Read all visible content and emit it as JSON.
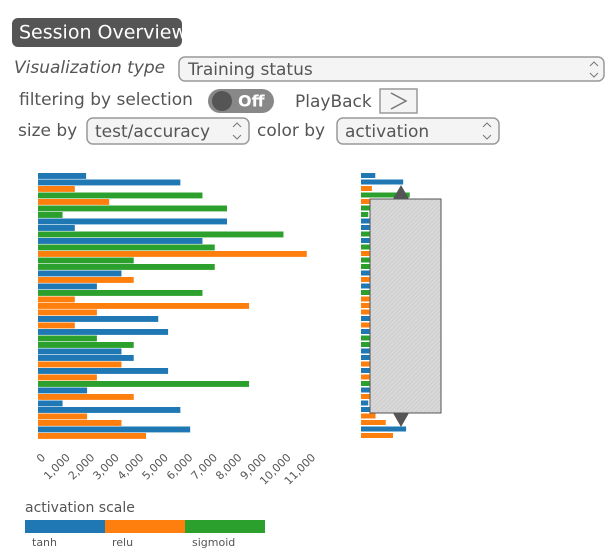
{
  "header": {
    "title": "Session Overview"
  },
  "controls": {
    "visualization_type_label": "Visualization type",
    "visualization_type_value": "Training status",
    "filtering_label": "filtering by selection",
    "filtering_state": "Off",
    "playback_label": "PlayBack",
    "size_by_label": "size by",
    "size_by_value": "test/accuracy",
    "color_by_label": "color by",
    "color_by_value": "activation"
  },
  "chart_data": {
    "type": "hbar",
    "legend_title": "activation scale",
    "xlim": [
      0,
      11000
    ],
    "xticks": [
      0,
      {
        "value": 1000,
        "label": "1,000"
      },
      {
        "value": 2000,
        "label": "2,000"
      },
      {
        "value": 3000,
        "label": "3,000"
      },
      {
        "value": 4000,
        "label": "4,000"
      },
      {
        "value": 5000,
        "label": "5,000"
      },
      {
        "value": 6000,
        "label": "6,000"
      },
      {
        "value": 7000,
        "label": "7,000"
      },
      {
        "value": 8000,
        "label": "8,000"
      },
      {
        "value": 9000,
        "label": "9,000"
      },
      {
        "value": 10000,
        "label": "10,000"
      },
      {
        "value": 11000,
        "label": "11,000"
      }
    ],
    "series": [
      {
        "name": "tanh",
        "color": "#1f77b4",
        "values": [
          1960,
          5800,
          null,
          null,
          null,
          null,
          null,
          7700,
          1500,
          null,
          6700,
          null,
          null,
          null,
          null,
          3400,
          null,
          2400,
          null,
          null,
          null,
          null,
          4900,
          null,
          5300,
          null,
          null,
          3400,
          3900,
          null,
          5300,
          null,
          null,
          2000,
          null,
          1000,
          5800,
          null,
          null,
          6200,
          null
        ]
      },
      {
        "name": "relu",
        "color": "#ff7f0e",
        "values": [
          null,
          null,
          1500,
          null,
          2900,
          null,
          null,
          null,
          null,
          null,
          null,
          null,
          10950,
          null,
          null,
          null,
          3900,
          null,
          null,
          1500,
          8600,
          2400,
          null,
          1500,
          null,
          null,
          null,
          null,
          null,
          3400,
          null,
          2400,
          null,
          null,
          3900,
          null,
          null,
          2000,
          3400,
          null,
          4400
        ]
      },
      {
        "name": "sigmoid",
        "color": "#2ca02c",
        "values": [
          null,
          null,
          null,
          6700,
          null,
          7700,
          1000,
          null,
          null,
          10000,
          null,
          7200,
          null,
          3900,
          7200,
          null,
          null,
          null,
          6700,
          null,
          null,
          null,
          null,
          null,
          null,
          2400,
          3900,
          null,
          null,
          null,
          null,
          null,
          8600,
          null,
          null,
          null,
          null,
          null,
          null,
          null,
          null
        ]
      }
    ]
  }
}
